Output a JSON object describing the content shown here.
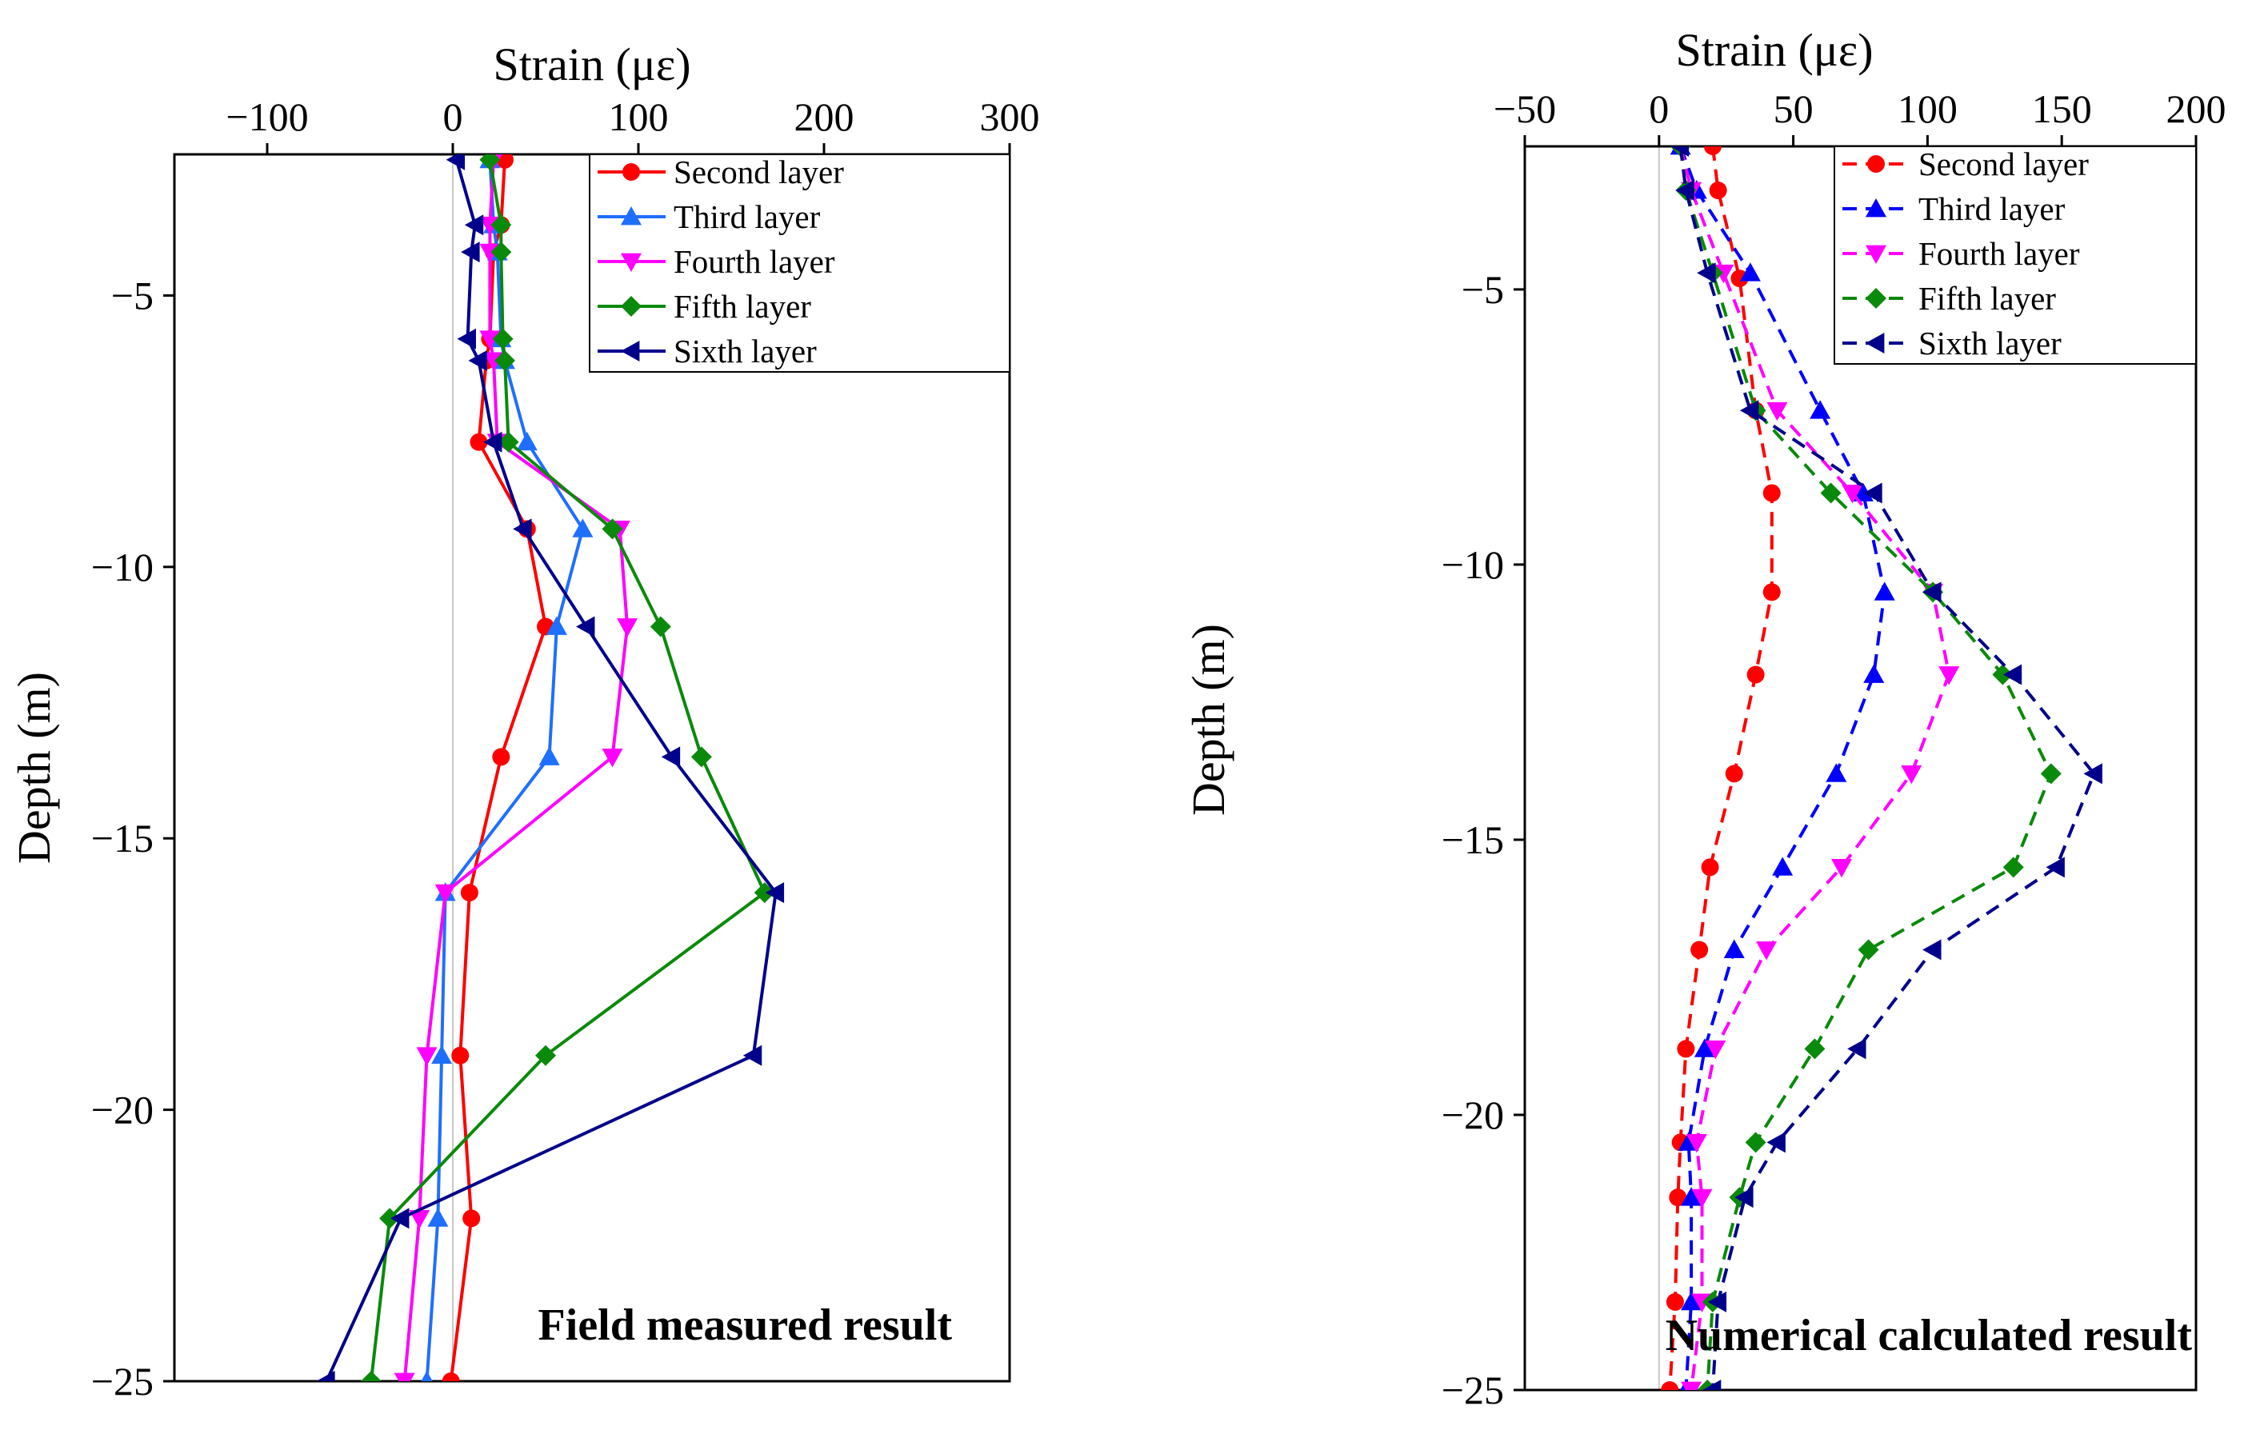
{
  "chart_data": [
    {
      "type": "line",
      "title": "",
      "annotation": "Field measured result",
      "xlabel": "Strain (με)",
      "ylabel": "Depth (m)",
      "xlim": [
        -150,
        300
      ],
      "ylim": [
        -25,
        -2.4
      ],
      "xticks": [
        -100,
        0,
        100,
        200,
        300
      ],
      "xtick_labels": [
        "−100",
        "0",
        "100",
        "200",
        "300"
      ],
      "yticks": [
        -5,
        -10,
        -15,
        -20,
        -25
      ],
      "ytick_labels": [
        "−5",
        "−10",
        "−15",
        "−20",
        "−25"
      ],
      "x_axis_position": "top",
      "legend_position": "top-right",
      "depths": [
        -2.5,
        -3.7,
        -4.2,
        -5.8,
        -6.2,
        -7.7,
        -9.3,
        -11.1,
        -13.5,
        -16.0,
        -19.0,
        -22.0,
        -25.0
      ],
      "series": [
        {
          "name": "Second layer",
          "color": "#ff0000",
          "marker": "circle",
          "line": "solid",
          "x": [
            28,
            26,
            22,
            20,
            18,
            14,
            40,
            50,
            26,
            9,
            4,
            10,
            -1
          ],
          "y": [
            -2.5,
            -3.7,
            -4.2,
            -5.8,
            -6.2,
            -7.7,
            -9.3,
            -11.1,
            -13.5,
            -16.0,
            -19.0,
            -22.0,
            -25.0
          ]
        },
        {
          "name": "Third layer",
          "color": "#1f6fff",
          "marker": "triangle-up",
          "line": "solid",
          "x": [
            20,
            22,
            24,
            26,
            28,
            40,
            70,
            56,
            52,
            -4,
            -6,
            -8,
            -14
          ],
          "y": [
            -2.5,
            -3.7,
            -4.2,
            -5.8,
            -6.2,
            -7.7,
            -9.3,
            -11.1,
            -13.5,
            -16.0,
            -19.0,
            -22.0,
            -25.0
          ]
        },
        {
          "name": "Fourth layer",
          "color": "#ff00ff",
          "marker": "triangle-down",
          "line": "solid",
          "x": [
            22,
            20,
            20,
            20,
            22,
            24,
            90,
            94,
            86,
            -4,
            -14,
            -18,
            -26
          ],
          "y": [
            -2.5,
            -3.7,
            -4.2,
            -5.8,
            -6.2,
            -7.7,
            -9.3,
            -11.1,
            -13.5,
            -16.0,
            -19.0,
            -22.0,
            -25.0
          ]
        },
        {
          "name": "Fifth layer",
          "color": "#0a8a0a",
          "marker": "diamond",
          "line": "solid",
          "x": [
            20,
            26,
            26,
            27,
            28,
            30,
            86,
            112,
            134,
            168,
            50,
            -34,
            -44
          ],
          "y": [
            -2.5,
            -3.7,
            -4.2,
            -5.8,
            -6.2,
            -7.7,
            -9.3,
            -11.1,
            -13.5,
            -16.0,
            -19.0,
            -22.0,
            -25.0
          ]
        },
        {
          "name": "Sixth layer",
          "color": "#00008b",
          "marker": "triangle-left",
          "line": "solid",
          "x": [
            2,
            12,
            10,
            8,
            14,
            22,
            38,
            72,
            118,
            174,
            162,
            -28,
            -68
          ],
          "y": [
            -2.5,
            -3.7,
            -4.2,
            -5.8,
            -6.2,
            -7.7,
            -9.3,
            -11.1,
            -13.5,
            -16.0,
            -19.0,
            -22.0,
            -25.0
          ]
        }
      ]
    },
    {
      "type": "line",
      "title": "",
      "annotation": "Numerical calculated result",
      "xlabel": "Strain (με)",
      "ylabel": "Depth (m)",
      "xlim": [
        -50,
        200
      ],
      "ylim": [
        -25,
        -2.4
      ],
      "xticks": [
        -50,
        0,
        50,
        100,
        150,
        200
      ],
      "xtick_labels": [
        "−50",
        "0",
        "50",
        "100",
        "150",
        "200"
      ],
      "yticks": [
        -5,
        -10,
        -15,
        -20,
        -25
      ],
      "ytick_labels": [
        "−5",
        "−10",
        "−15",
        "−20",
        "−25"
      ],
      "x_axis_position": "top",
      "legend_position": "top-right",
      "series": [
        {
          "name": "Second layer",
          "color": "#ff0000",
          "marker": "circle",
          "line": "dashed",
          "x": [
            20,
            22,
            30,
            36,
            42,
            42,
            36,
            28,
            19,
            15,
            10,
            8,
            7,
            6,
            4
          ],
          "y": [
            -2.4,
            -3.2,
            -4.8,
            -7.2,
            -8.7,
            -10.5,
            -12.0,
            -13.8,
            -15.5,
            -17.0,
            -18.8,
            -20.5,
            -21.5,
            -23.4,
            -25.0
          ]
        },
        {
          "name": "Third layer",
          "color": "#0000ff",
          "marker": "triangle-up",
          "line": "dashed",
          "x": [
            8,
            14,
            34,
            60,
            76,
            84,
            80,
            66,
            46,
            28,
            17,
            11,
            12,
            12,
            10
          ],
          "y": [
            -2.4,
            -3.2,
            -4.7,
            -7.2,
            -8.7,
            -10.5,
            -12.0,
            -13.8,
            -15.5,
            -17.0,
            -18.8,
            -20.5,
            -21.5,
            -23.4,
            -25.0
          ]
        },
        {
          "name": "Fourth layer",
          "color": "#ff00ff",
          "marker": "triangle-down",
          "line": "dashed",
          "x": [
            8,
            12,
            24,
            44,
            72,
            102,
            108,
            94,
            68,
            40,
            21,
            14,
            16,
            16,
            12
          ],
          "y": [
            -2.4,
            -3.2,
            -4.7,
            -7.2,
            -8.7,
            -10.5,
            -12.0,
            -13.8,
            -15.5,
            -17.0,
            -18.8,
            -20.5,
            -21.5,
            -23.4,
            -25.0
          ]
        },
        {
          "name": "Fifth layer",
          "color": "#0a8a0a",
          "marker": "diamond",
          "line": "dashed",
          "x": [
            8,
            10,
            20,
            36,
            64,
            102,
            128,
            146,
            132,
            78,
            58,
            36,
            30,
            20,
            18
          ],
          "y": [
            -2.4,
            -3.2,
            -4.7,
            -7.2,
            -8.7,
            -10.5,
            -12.0,
            -13.8,
            -15.5,
            -17.0,
            -18.8,
            -20.5,
            -21.5,
            -23.4,
            -25.0
          ]
        },
        {
          "name": "Sixth layer",
          "color": "#00008b",
          "marker": "triangle-left",
          "line": "dashed",
          "x": [
            8,
            10,
            18,
            34,
            80,
            102,
            132,
            162,
            148,
            102,
            74,
            44,
            32,
            22,
            20
          ],
          "y": [
            -2.4,
            -3.2,
            -4.7,
            -7.2,
            -8.7,
            -10.5,
            -12.0,
            -13.8,
            -15.5,
            -17.0,
            -18.8,
            -20.5,
            -21.5,
            -23.4,
            -25.0
          ]
        }
      ]
    }
  ]
}
